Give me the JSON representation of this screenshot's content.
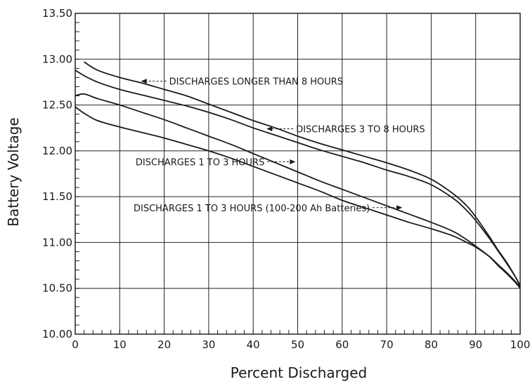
{
  "chart_data": {
    "type": "line",
    "xlabel": "Percent Discharged",
    "ylabel": "Battery Voltage",
    "xlim": [
      0,
      100
    ],
    "ylim": [
      10.0,
      13.5
    ],
    "x_ticks": [
      0,
      10,
      20,
      30,
      40,
      50,
      60,
      70,
      80,
      90,
      100
    ],
    "y_ticks": [
      10.0,
      10.5,
      11.0,
      11.5,
      12.0,
      12.5,
      13.0,
      13.5
    ],
    "x_tick_labels": [
      "0",
      "10",
      "20",
      "30",
      "40",
      "50",
      "60",
      "70",
      "80",
      "90",
      "100"
    ],
    "y_tick_labels": [
      "10.00",
      "10.50",
      "11.00",
      "11.50",
      "12.00",
      "12.50",
      "13.00",
      "13.50"
    ],
    "grid": true,
    "series": [
      {
        "name": "DISCHARGES LONGER THAN 8 HOURS",
        "x": [
          2,
          5,
          10,
          15,
          20,
          25,
          30,
          35,
          40,
          45,
          50,
          55,
          60,
          65,
          70,
          75,
          80,
          85,
          88,
          90,
          93,
          95,
          97,
          99,
          100
        ],
        "y": [
          12.97,
          12.88,
          12.8,
          12.74,
          12.67,
          12.6,
          12.51,
          12.42,
          12.33,
          12.25,
          12.16,
          12.08,
          12.01,
          11.94,
          11.87,
          11.79,
          11.69,
          11.53,
          11.4,
          11.28,
          11.07,
          10.92,
          10.78,
          10.62,
          10.52
        ]
      },
      {
        "name": "DISCHARGES 3 TO 8 HOURS",
        "x": [
          0,
          2,
          5,
          10,
          15,
          20,
          25,
          30,
          35,
          40,
          45,
          50,
          55,
          60,
          65,
          70,
          75,
          80,
          85,
          88,
          90,
          93,
          95,
          97,
          99,
          100
        ],
        "y": [
          12.88,
          12.82,
          12.75,
          12.67,
          12.61,
          12.55,
          12.49,
          12.42,
          12.34,
          12.25,
          12.17,
          12.09,
          12.01,
          11.94,
          11.87,
          11.79,
          11.72,
          11.63,
          11.48,
          11.35,
          11.24,
          11.05,
          10.91,
          10.77,
          10.62,
          10.53
        ]
      },
      {
        "name": "DISCHARGES 1 TO 3 HOURS",
        "x": [
          0,
          2,
          5,
          10,
          15,
          20,
          25,
          30,
          35,
          40,
          45,
          50,
          55,
          60,
          65,
          70,
          75,
          80,
          85,
          88,
          90,
          93,
          95,
          97,
          99,
          100
        ],
        "y": [
          12.6,
          12.62,
          12.57,
          12.5,
          12.42,
          12.34,
          12.25,
          12.16,
          12.07,
          11.97,
          11.87,
          11.77,
          11.67,
          11.58,
          11.49,
          11.4,
          11.31,
          11.22,
          11.12,
          11.03,
          10.96,
          10.85,
          10.75,
          10.66,
          10.56,
          10.5
        ]
      },
      {
        "name": "DISCHARGES 1 TO 3 HOURS (100-200 Ah Batteries)",
        "x": [
          0,
          2,
          5,
          10,
          15,
          20,
          25,
          30,
          35,
          40,
          45,
          50,
          55,
          60,
          65,
          70,
          75,
          80,
          85,
          88,
          90,
          93,
          95,
          97,
          99,
          100
        ],
        "y": [
          12.48,
          12.41,
          12.33,
          12.26,
          12.2,
          12.14,
          12.07,
          12.0,
          11.92,
          11.83,
          11.74,
          11.65,
          11.56,
          11.46,
          11.38,
          11.3,
          11.22,
          11.15,
          11.07,
          11.0,
          10.95,
          10.85,
          10.76,
          10.67,
          10.57,
          10.51
        ]
      }
    ],
    "annotations": [
      {
        "text": "DISCHARGES LONGER THAN 8 HOURS",
        "x": 14.8,
        "y": 12.76
      },
      {
        "text": "DISCHARGES 3 TO 8 HOURS",
        "x": 43.0,
        "y": 12.24
      },
      {
        "text": "DISCHARGES 1 TO 3 HOURS",
        "x": 49.5,
        "y": 11.88
      },
      {
        "text": "DISCHARGES 1 TO 3 HOURS (100-200 Ah Batteries)",
        "x": 73.5,
        "y": 11.38
      }
    ]
  }
}
